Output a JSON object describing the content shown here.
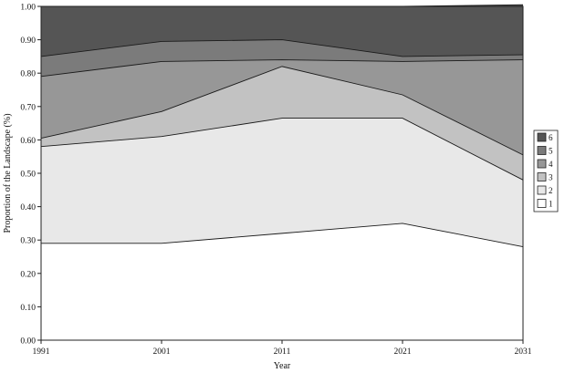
{
  "chart_data": {
    "type": "area",
    "stacked": true,
    "x": [
      1991,
      2001,
      2011,
      2021,
      2031
    ],
    "ylim": [
      0,
      1
    ],
    "yticks": [
      0,
      0.1,
      0.2,
      0.3,
      0.4,
      0.5,
      0.6,
      0.7,
      0.8,
      0.9,
      1.0
    ],
    "ytick_labels": [
      "0.00",
      "0.10",
      "0.20",
      "0.30",
      "0.40",
      "0.50",
      "0.60",
      "0.70",
      "0.80",
      "0.90",
      "1.00"
    ],
    "xtick_labels": [
      "1991",
      "2001",
      "2011",
      "2021",
      "2031"
    ],
    "xlabel": "Year",
    "ylabel": "Proportion of the Landscape (%)",
    "legend_position": "right",
    "grid": false,
    "series": [
      {
        "name": "1",
        "color": "#ffffff",
        "values": [
          0.29,
          0.29,
          0.32,
          0.35,
          0.28
        ]
      },
      {
        "name": "2",
        "color": "#e8e8e8",
        "values": [
          0.29,
          0.32,
          0.345,
          0.315,
          0.2
        ]
      },
      {
        "name": "3",
        "color": "#c2c2c2",
        "values": [
          0.025,
          0.075,
          0.155,
          0.07,
          0.075
        ]
      },
      {
        "name": "4",
        "color": "#979797",
        "values": [
          0.185,
          0.15,
          0.02,
          0.1,
          0.285
        ]
      },
      {
        "name": "5",
        "color": "#7b7b7b",
        "values": [
          0.06,
          0.06,
          0.06,
          0.015,
          0.015
        ]
      },
      {
        "name": "6",
        "color": "#555555",
        "values": [
          0.15,
          0.105,
          0.1,
          0.15,
          0.15
        ]
      }
    ]
  }
}
